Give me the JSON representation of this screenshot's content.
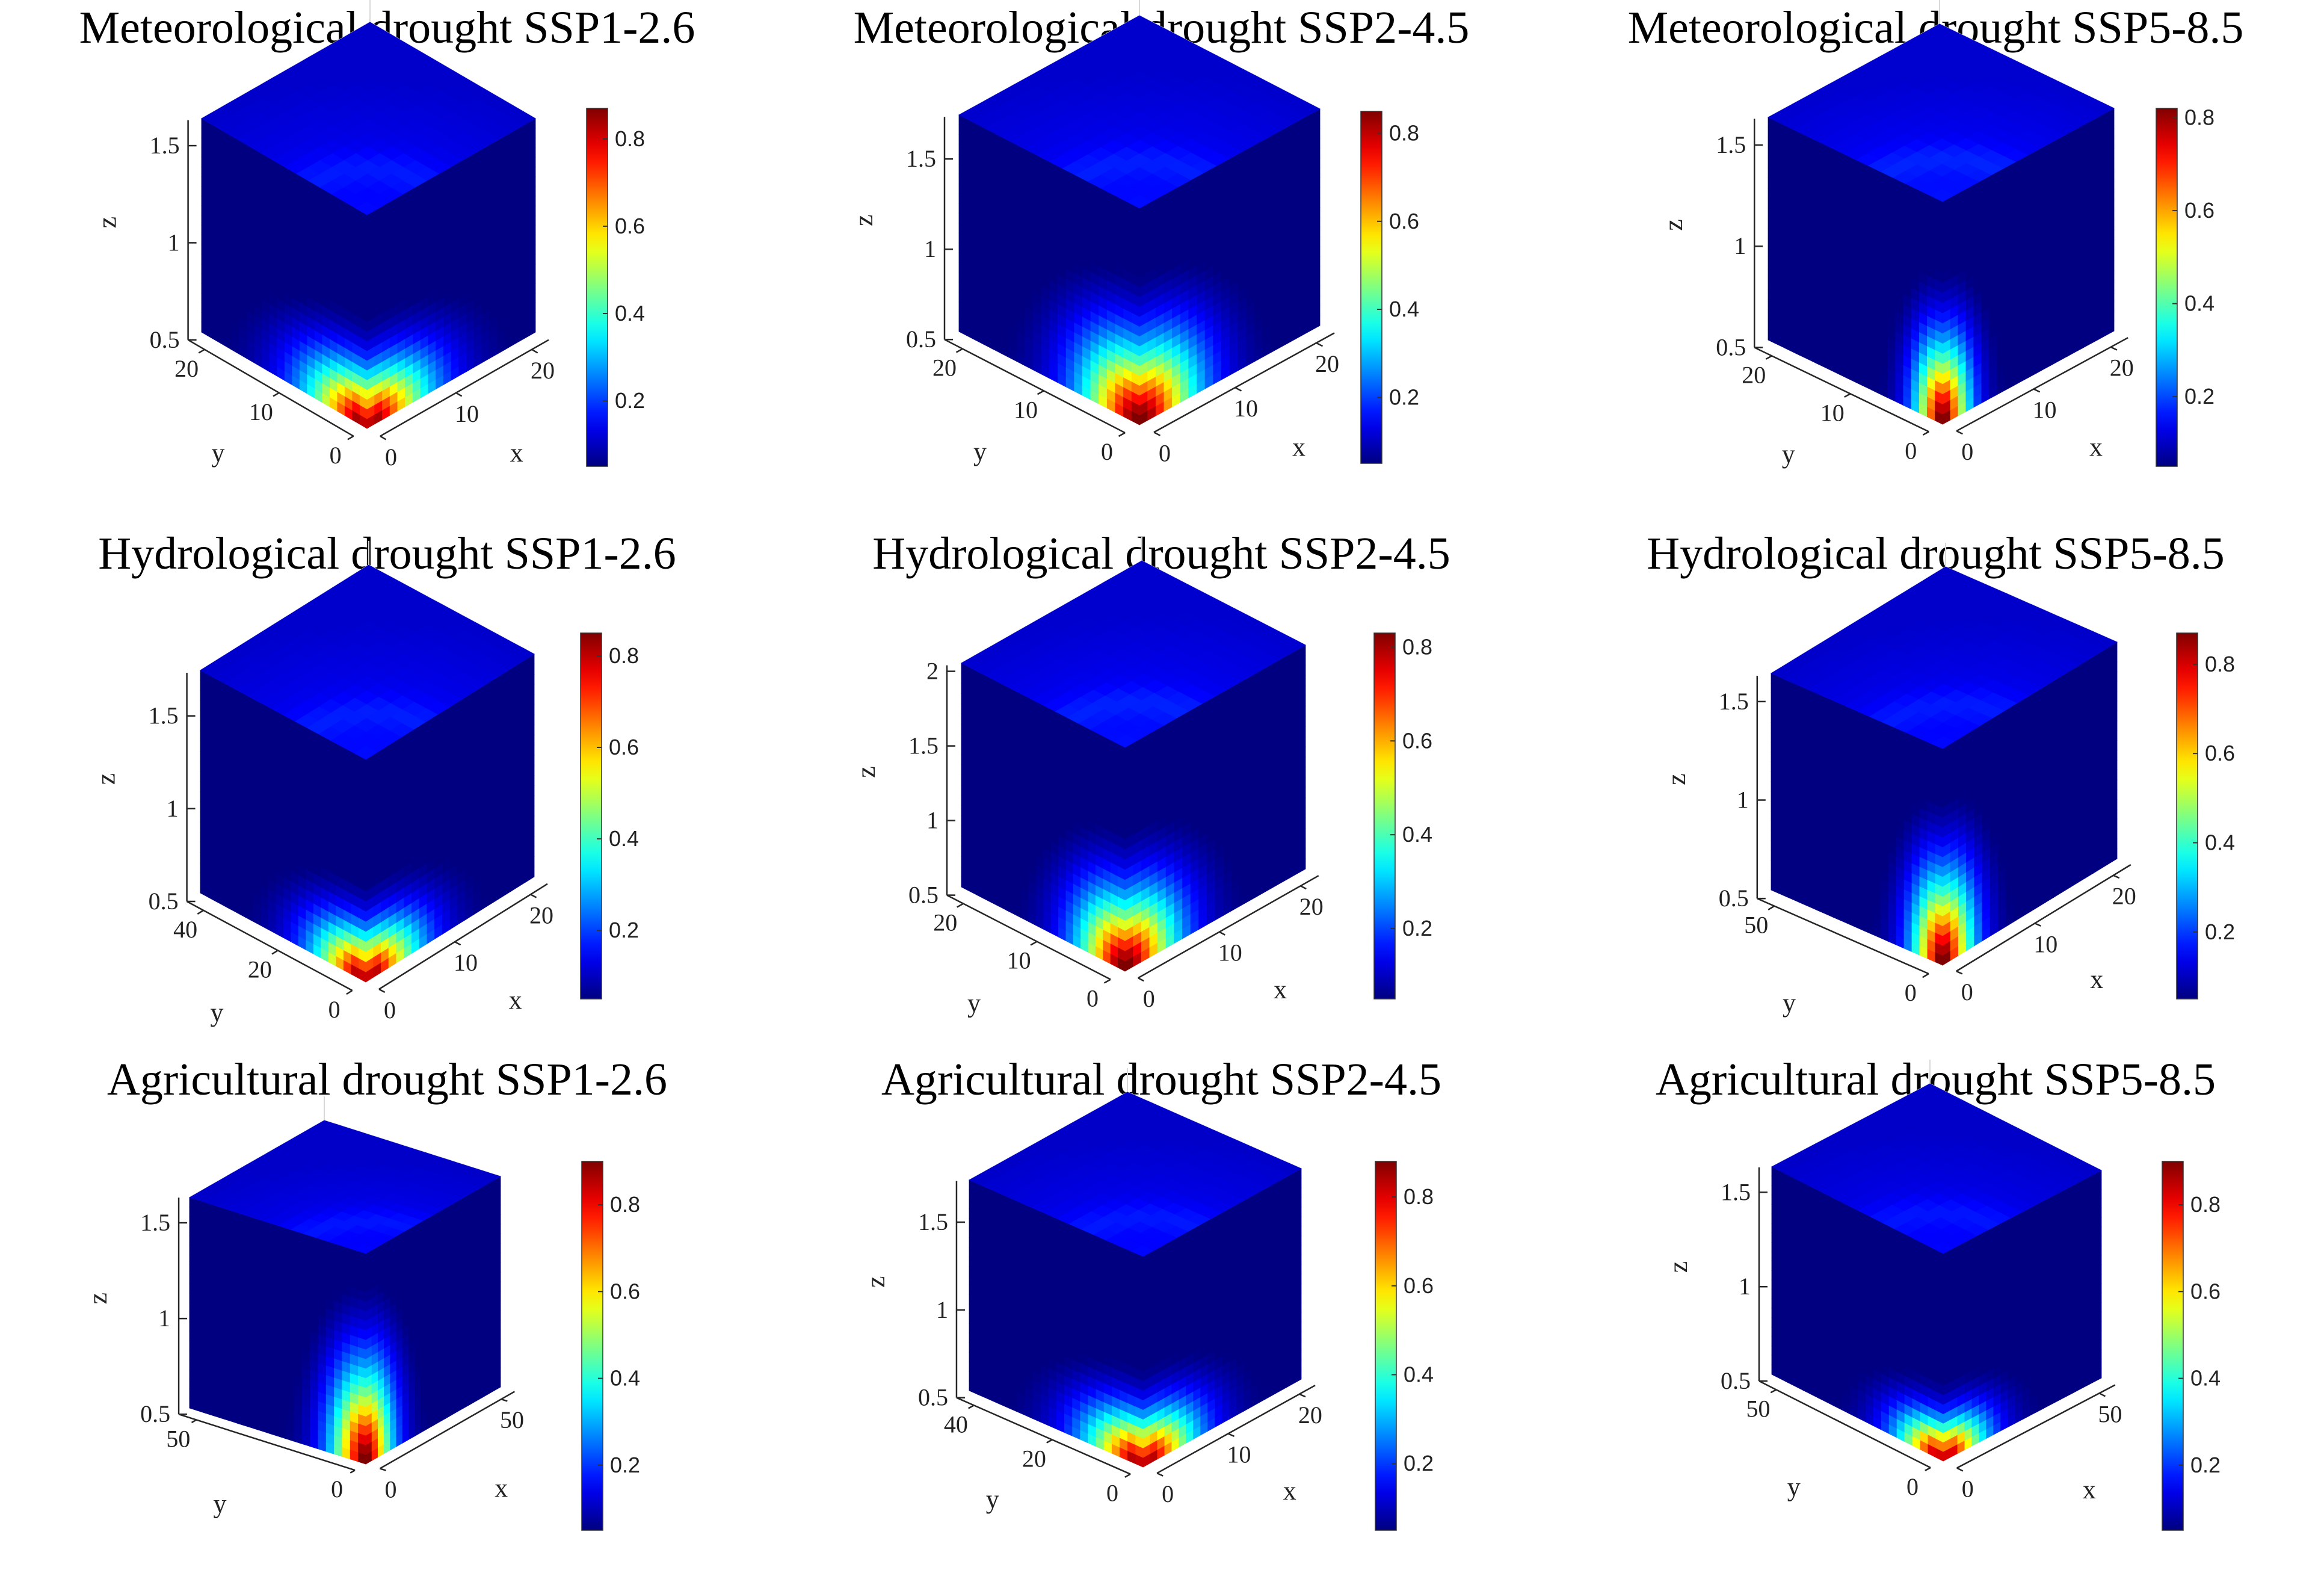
{
  "figure": {
    "layout": "3x3 grid",
    "colormap": "jet",
    "colors": {
      "low": "#00008F",
      "mid": "#00FF80",
      "high": "#800000"
    }
  },
  "chart_data": [
    {
      "type": "heatmap",
      "title": "Meteorological drought SSP1-2.6",
      "xlabel": "x",
      "ylabel": "y",
      "zlabel": "z",
      "xticks": [
        "0",
        "10",
        "20"
      ],
      "yticks": [
        "0",
        "10",
        "20"
      ],
      "zticks": [
        "0.5",
        "1",
        "1.5"
      ],
      "zlim": [
        0.5,
        1.6
      ],
      "clim": [
        0.05,
        0.87
      ],
      "cticks": [
        "0.2",
        "0.4",
        "0.6",
        "0.8"
      ],
      "hotspot": {
        "spread": 0.45,
        "peak": 0.87,
        "shape": "heart"
      }
    },
    {
      "type": "heatmap",
      "title": "Meteorological drought SSP2-4.5",
      "xlabel": "x",
      "ylabel": "y",
      "zlabel": "z",
      "xticks": [
        "0",
        "10",
        "20"
      ],
      "yticks": [
        "0",
        "10",
        "20"
      ],
      "zticks": [
        "0.5",
        "1",
        "1.5"
      ],
      "zlim": [
        0.5,
        1.7
      ],
      "clim": [
        0.05,
        0.85
      ],
      "cticks": [
        "0.2",
        "0.4",
        "0.6",
        "0.8"
      ],
      "hotspot": {
        "spread": 0.5,
        "peak": 0.85,
        "shape": "round"
      }
    },
    {
      "type": "heatmap",
      "title": "Meteorological drought SSP5-8.5",
      "xlabel": "x",
      "ylabel": "y",
      "zlabel": "z",
      "xticks": [
        "0",
        "10",
        "20"
      ],
      "yticks": [
        "0",
        "10",
        "20"
      ],
      "zticks": [
        "0.5",
        "1",
        "1.5"
      ],
      "zlim": [
        0.5,
        1.6
      ],
      "clim": [
        0.05,
        0.82
      ],
      "cticks": [
        "0.2",
        "0.4",
        "0.6",
        "0.8"
      ],
      "hotspot": {
        "spread": 0.4,
        "peak": 0.82,
        "shape": "tall"
      }
    },
    {
      "type": "heatmap",
      "title": "Hydrological drought SSP1-2.6",
      "xlabel": "x",
      "ylabel": "y",
      "zlabel": "z",
      "xticks": [
        "0",
        "10",
        "20"
      ],
      "yticks": [
        "0",
        "20",
        "40"
      ],
      "zticks": [
        "0.5",
        "1",
        "1.5"
      ],
      "zlim": [
        0.5,
        1.7
      ],
      "clim": [
        0.05,
        0.85
      ],
      "cticks": [
        "0.2",
        "0.4",
        "0.6",
        "0.8"
      ],
      "hotspot": {
        "spread": 0.38,
        "peak": 0.85,
        "shape": "heart"
      }
    },
    {
      "type": "heatmap",
      "title": "Hydrological drought SSP2-4.5",
      "xlabel": "x",
      "ylabel": "y",
      "zlabel": "z",
      "xticks": [
        "0",
        "10",
        "20"
      ],
      "yticks": [
        "0",
        "10",
        "20"
      ],
      "zticks": [
        "0.5",
        "1",
        "1.5",
        "2"
      ],
      "zlim": [
        0.5,
        2.0
      ],
      "clim": [
        0.05,
        0.83
      ],
      "cticks": [
        "0.2",
        "0.4",
        "0.6",
        "0.8"
      ],
      "hotspot": {
        "spread": 0.45,
        "peak": 0.83,
        "shape": "round"
      }
    },
    {
      "type": "heatmap",
      "title": "Hydrological drought SSP5-8.5",
      "xlabel": "x",
      "ylabel": "y",
      "zlabel": "z",
      "xticks": [
        "0",
        "10",
        "20"
      ],
      "yticks": [
        "0",
        "50"
      ],
      "zticks": [
        "0.5",
        "1",
        "1.5"
      ],
      "zlim": [
        0.5,
        1.6
      ],
      "clim": [
        0.05,
        0.87
      ],
      "cticks": [
        "0.2",
        "0.4",
        "0.6",
        "0.8"
      ],
      "hotspot": {
        "spread": 0.45,
        "peak": 0.87,
        "shape": "tall"
      }
    },
    {
      "type": "heatmap",
      "title": "Agricultural drought SSP1-2.6",
      "xlabel": "x",
      "ylabel": "y",
      "zlabel": "z",
      "xticks": [
        "0",
        "50"
      ],
      "yticks": [
        "0",
        "50"
      ],
      "zticks": [
        "0.5",
        "1",
        "1.5"
      ],
      "zlim": [
        0.5,
        1.6
      ],
      "clim": [
        0.05,
        0.9
      ],
      "cticks": [
        "0.2",
        "0.4",
        "0.6",
        "0.8"
      ],
      "hotspot": {
        "spread": 0.5,
        "peak": 0.9,
        "shape": "tall"
      }
    },
    {
      "type": "heatmap",
      "title": "Agricultural drought SSP2-4.5",
      "xlabel": "x",
      "ylabel": "y",
      "zlabel": "z",
      "xticks": [
        "0",
        "10",
        "20"
      ],
      "yticks": [
        "0",
        "20",
        "40"
      ],
      "zticks": [
        "0.5",
        "1",
        "1.5"
      ],
      "zlim": [
        0.5,
        1.7
      ],
      "clim": [
        0.05,
        0.88
      ],
      "cticks": [
        "0.2",
        "0.4",
        "0.6",
        "0.8"
      ],
      "hotspot": {
        "spread": 0.4,
        "peak": 0.88,
        "shape": "heart"
      }
    },
    {
      "type": "heatmap",
      "title": "Agricultural drought SSP5-8.5",
      "xlabel": "x",
      "ylabel": "y",
      "zlabel": "z",
      "xticks": [
        "0",
        "50"
      ],
      "yticks": [
        "0",
        "50"
      ],
      "zticks": [
        "0.5",
        "1",
        "1.5"
      ],
      "zlim": [
        0.5,
        1.6
      ],
      "clim": [
        0.05,
        0.9
      ],
      "cticks": [
        "0.2",
        "0.4",
        "0.6",
        "0.8"
      ],
      "hotspot": {
        "spread": 0.32,
        "peak": 0.9,
        "shape": "heart"
      }
    }
  ]
}
